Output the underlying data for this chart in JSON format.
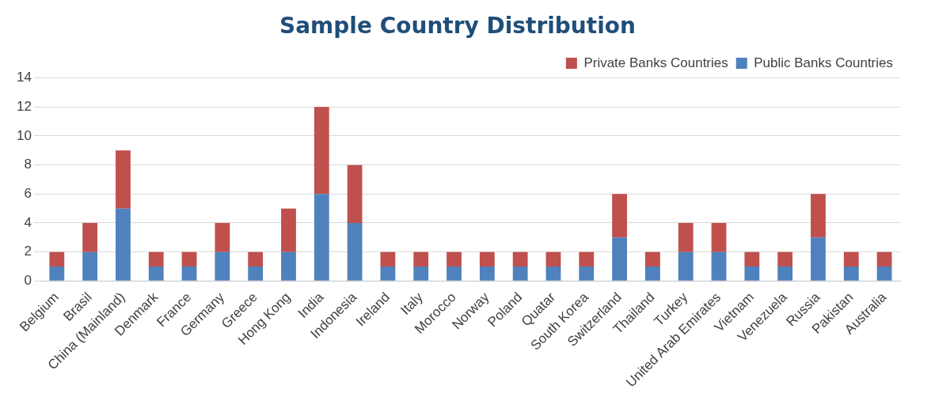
{
  "chart_data": {
    "type": "bar",
    "title": "Sample Country Distribution",
    "stacked": true,
    "legend": "top right",
    "grid": "y",
    "categories": [
      "Belgium",
      "Brasil",
      "China (Mainland)",
      "Denmark",
      "France",
      "Germany",
      "Greece",
      "Hong Kong",
      "India",
      "Indonesia",
      "Ireland",
      "Italy",
      "Morocco",
      "Norway",
      "Poland",
      "Quatar",
      "South Korea",
      "Switzerland",
      "Thailand",
      "Turkey",
      "United Arab Emirates",
      "Vietnam",
      "Venezuela",
      "Russia",
      "Pakistan",
      "Australia"
    ],
    "series": [
      {
        "name": "Public Banks Countries",
        "color": "#4f81bd",
        "values": [
          1,
          2,
          5,
          1,
          1,
          2,
          1,
          2,
          6,
          4,
          1,
          1,
          1,
          1,
          1,
          1,
          1,
          3,
          1,
          2,
          2,
          1,
          1,
          3,
          1,
          1
        ]
      },
      {
        "name": "Private Banks Countries",
        "color": "#c0504d",
        "values": [
          1,
          2,
          4,
          1,
          1,
          2,
          1,
          3,
          6,
          4,
          1,
          1,
          1,
          1,
          1,
          1,
          1,
          3,
          1,
          2,
          2,
          1,
          1,
          3,
          1,
          1
        ]
      }
    ],
    "ylim": [
      0,
      14
    ],
    "yticks": [
      0,
      2,
      4,
      6,
      8,
      10,
      12,
      14
    ]
  }
}
